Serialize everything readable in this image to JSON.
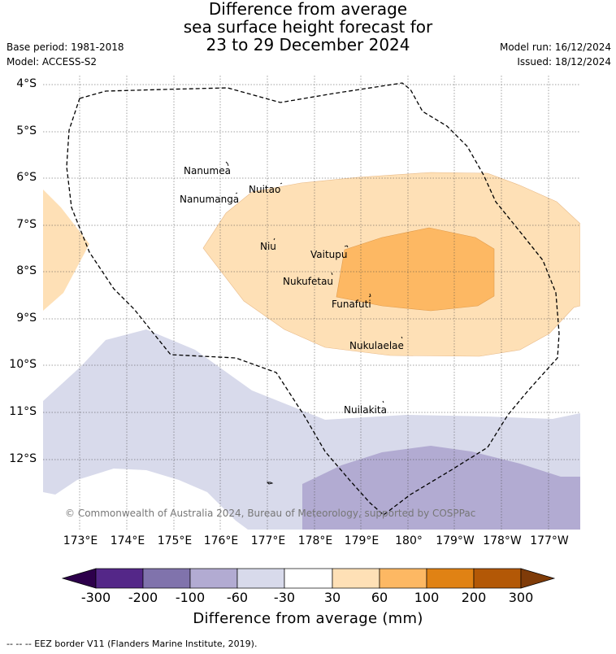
{
  "title": {
    "line1": "Difference from average",
    "line2": "sea surface height forecast for",
    "line3": "23 to 29 December 2024"
  },
  "meta": {
    "base_period": "Base period: 1981-2018",
    "model": "Model: ACCESS-S2",
    "model_run": "Model run: 16/12/2024",
    "issued": "Issued: 18/12/2024"
  },
  "latitudes": [
    "4°S",
    "5°S",
    "6°S",
    "7°S",
    "8°S",
    "9°S",
    "10°S",
    "11°S",
    "12°S"
  ],
  "longitudes": [
    "173°E",
    "174°E",
    "175°E",
    "176°E",
    "177°E",
    "178°E",
    "179°E",
    "180°",
    "179°W",
    "178°W",
    "177°W"
  ],
  "places": {
    "nanumea": "Nanumea",
    "nuitao": "Nuitao",
    "nanumanga": "Nanumanga",
    "niu": "Niu",
    "vaitupu": "Vaitupu",
    "nukufetau": "Nukufetau",
    "funafuti": "Funafuti",
    "nukulaelae": "Nukulaelae",
    "nuilakita": "Nuilakita"
  },
  "copyright": "© Commonwealth of Australia 2024, Bureau of Meteorology, supported by COSPPac",
  "colorbar": {
    "ticks": [
      "-300",
      "-200",
      "-100",
      "-60",
      "-30",
      "30",
      "60",
      "100",
      "200",
      "300"
    ],
    "colors": [
      "#2d004b",
      "#542788",
      "#8073ac",
      "#b2abd2",
      "#d8daeb",
      "#ffffff",
      "#fee0b6",
      "#fdb863",
      "#e08214",
      "#b35806",
      "#7f3b08"
    ],
    "label": "Difference from average (mm)"
  },
  "footer": "-- -- -- EEZ border V11 (Flanders Marine Institute, 2019)."
}
